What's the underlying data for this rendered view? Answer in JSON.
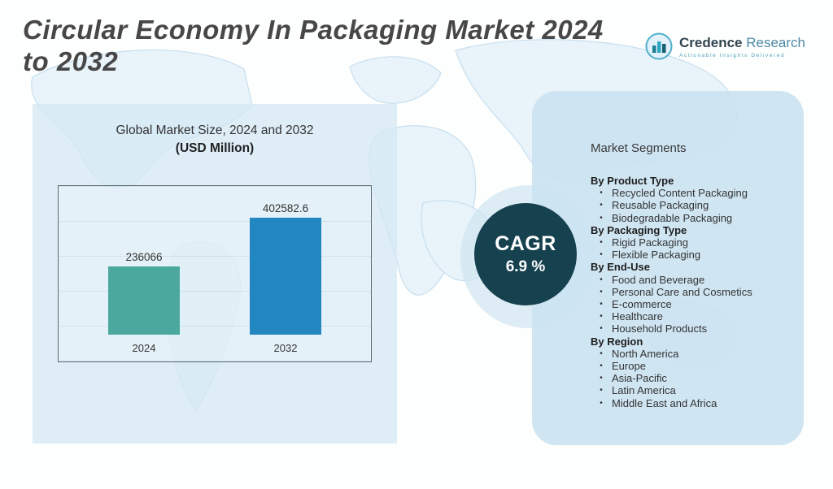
{
  "header": {
    "title_line1": "Circular Economy In Packaging Market  2024",
    "title_line2": "to 2032"
  },
  "logo": {
    "brand_bold": "Credence",
    "brand_light": "Research",
    "tagline": "Actionable Insights Delivered"
  },
  "chart_panel": {
    "title": "Global Market Size, 2024 and 2032",
    "subtitle": "(USD Million)"
  },
  "cagr": {
    "label": "CAGR",
    "value": "6.9 %"
  },
  "segments": {
    "title": "Market Segments",
    "groups": [
      {
        "heading": "By Product Type",
        "items": [
          "Recycled Content Packaging",
          "Reusable Packaging",
          "Biodegradable Packaging"
        ]
      },
      {
        "heading": "By Packaging Type",
        "items": [
          "Rigid Packaging",
          "Flexible Packaging"
        ]
      },
      {
        "heading": "By End-Use",
        "items": [
          "Food and Beverage",
          "Personal Care and Cosmetics",
          "E-commerce",
          "Healthcare",
          "Household Products"
        ]
      },
      {
        "heading": "By Region",
        "items": [
          "North America",
          "Europe",
          "Asia-Pacific",
          "Latin America",
          "Middle East and Africa"
        ]
      }
    ]
  },
  "chart_data": {
    "type": "bar",
    "title": "Global Market Size, 2024 and 2032",
    "xlabel": "",
    "ylabel": "USD Million",
    "categories": [
      "2024",
      "2032"
    ],
    "values": [
      236066,
      402582.6
    ],
    "value_labels": [
      "236066",
      "402582.6"
    ],
    "bar_colors": [
      "#4aa89f",
      "#2287c0"
    ],
    "ylim": [
      0,
      420000
    ],
    "grid": true,
    "legend": "none"
  }
}
